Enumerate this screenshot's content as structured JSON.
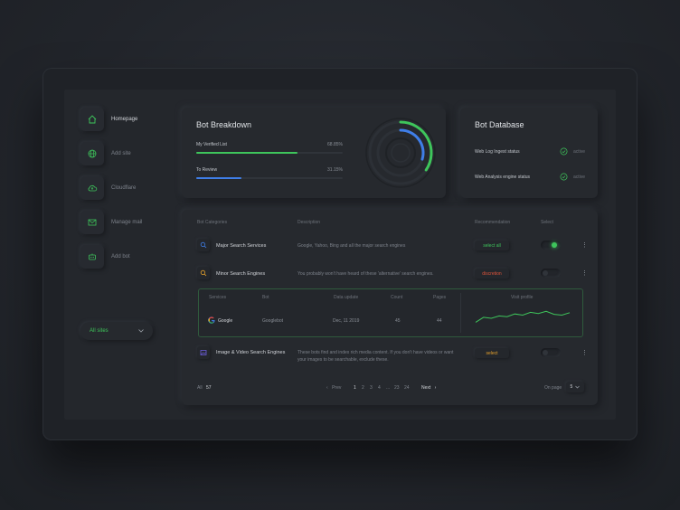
{
  "sidebar": {
    "items": [
      {
        "label": "Homepage",
        "icon": "home-icon"
      },
      {
        "label": "Add site",
        "icon": "globe-icon"
      },
      {
        "label": "Cloudflare",
        "icon": "cloud-upload-icon"
      },
      {
        "label": "Manage mail",
        "icon": "mail-icon"
      },
      {
        "label": "Add bot",
        "icon": "bot-icon"
      }
    ],
    "site_filter": "All sites"
  },
  "bot_breakdown": {
    "title": "Bot Breakdown",
    "metrics": [
      {
        "label": "My Verified List",
        "percent_text": "68.85%",
        "value": 68.85,
        "color": "#3ec55b"
      },
      {
        "label": "To Review",
        "percent_text": "31.15%",
        "value": 31.15,
        "color": "#3f7ee8"
      }
    ]
  },
  "bot_database": {
    "title": "Bot Database",
    "rows": [
      {
        "label": "Web Log Ingest status",
        "status": "active"
      },
      {
        "label": "Web Analysis engine status",
        "status": "active"
      }
    ]
  },
  "table": {
    "headers": {
      "category": "Bot Categories",
      "description": "Description",
      "recommendation": "Recommendation",
      "select": "Select"
    },
    "rows": [
      {
        "name": "Major Search Services",
        "description": "Google, Yahoo, Bing and all the major search engines",
        "recommendation": "select all",
        "rec_color": "#3ec55b",
        "selected": true
      },
      {
        "name": "Minor Search Engines",
        "description": "You probably won't have heard of these 'alternative' search engines.",
        "recommendation": "discretion",
        "rec_color": "#e0543a",
        "selected": false
      },
      {
        "name": "Image & Video Search Engines",
        "description": "These bots find and index rich media content. If you don't have videos or want your images to be searchable, exclude these.",
        "recommendation": "select",
        "rec_color": "#e8a32c",
        "selected": false
      }
    ],
    "detail": {
      "headers": {
        "services": "Services",
        "bot": "Bot",
        "date": "Data update",
        "count": "Count",
        "pages": "Pages",
        "visit": "Visit profile"
      },
      "service": "Google",
      "bot": "Googlebot",
      "date": "Dec, 11 2019",
      "count": "45",
      "pages": "44",
      "visit_profile": [
        0.3,
        0.55,
        0.5,
        0.62,
        0.58,
        0.72,
        0.66,
        0.8,
        0.74,
        0.85,
        0.7,
        0.66,
        0.78
      ]
    },
    "footer": {
      "all_label": "All",
      "all_count": "57",
      "prev": "Prev",
      "pages": [
        "1",
        "2",
        "3",
        "4",
        "...",
        "23",
        "24"
      ],
      "current_page": "1",
      "next": "Next",
      "on_page_label": "On page",
      "on_page_value": "5"
    }
  }
}
